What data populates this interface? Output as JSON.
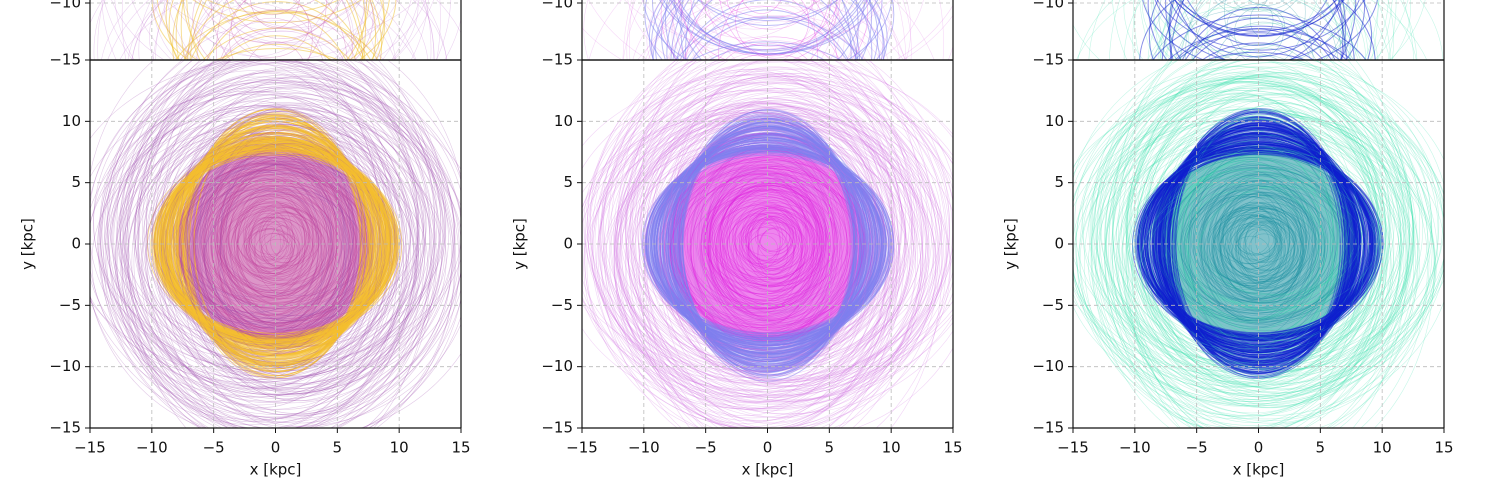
{
  "chart_data": [
    {
      "type": "orbits",
      "ylim": [
        -15,
        -10
      ],
      "xlim": [
        -15,
        15
      ],
      "yticks": [
        {
          "value": -15,
          "label": "−15"
        },
        {
          "value": -10,
          "label": "−10"
        }
      ],
      "xticks": [
        -10,
        -5,
        0,
        5,
        10
      ],
      "grid": true,
      "colors": [
        "#c070d0",
        "#c040a0",
        "#f0c030"
      ]
    },
    {
      "type": "orbits",
      "ylim": [
        -15,
        -10
      ],
      "xlim": [
        -15,
        15
      ],
      "yticks": [
        {
          "value": -15,
          "label": "−15"
        },
        {
          "value": -10,
          "label": "−10"
        }
      ],
      "xticks": [
        -10,
        -5,
        0,
        5,
        10
      ],
      "grid": true,
      "colors": [
        "#e080e8",
        "#e020e0",
        "#8080f0"
      ]
    },
    {
      "type": "orbits",
      "ylim": [
        -15,
        -10
      ],
      "xlim": [
        -15,
        15
      ],
      "yticks": [
        {
          "value": -15,
          "label": "−15"
        },
        {
          "value": -10,
          "label": "−10"
        }
      ],
      "xticks": [
        -10,
        -5,
        0,
        5,
        10
      ],
      "grid": true,
      "colors": [
        "#40e0b0",
        "#1a8fa0",
        "#1020d0"
      ]
    },
    {
      "type": "orbits",
      "xlabel": "x [kpc]",
      "ylabel": "y [kpc]",
      "xlim": [
        -15,
        15
      ],
      "ylim": [
        -15,
        15
      ],
      "xticks": [
        {
          "value": -15,
          "label": "−15"
        },
        {
          "value": -10,
          "label": "−10"
        },
        {
          "value": -5,
          "label": "−5"
        },
        0,
        5,
        10,
        15
      ],
      "yticks": [
        {
          "value": -15,
          "label": "−15"
        },
        {
          "value": -10,
          "label": "−10"
        },
        {
          "value": -5,
          "label": "−5"
        },
        0,
        5,
        10
      ],
      "grid": true,
      "colors": [
        "#a050b0",
        "#c0409a",
        "#f5c030"
      ]
    },
    {
      "type": "orbits",
      "xlabel": "x [kpc]",
      "ylabel": "y [kpc]",
      "xlim": [
        -15,
        15
      ],
      "ylim": [
        -15,
        15
      ],
      "xticks": [
        {
          "value": -15,
          "label": "−15"
        },
        {
          "value": -10,
          "label": "−10"
        },
        {
          "value": -5,
          "label": "−5"
        },
        0,
        5,
        10,
        15
      ],
      "yticks": [
        {
          "value": -15,
          "label": "−15"
        },
        {
          "value": -10,
          "label": "−10"
        },
        {
          "value": -5,
          "label": "−5"
        },
        0,
        5,
        10
      ],
      "grid": true,
      "colors": [
        "#d070e0",
        "#e020e0",
        "#8080f0"
      ]
    },
    {
      "type": "orbits",
      "xlabel": "x [kpc]",
      "ylabel": "y [kpc]",
      "xlim": [
        -15,
        15
      ],
      "ylim": [
        -15,
        15
      ],
      "xticks": [
        {
          "value": -15,
          "label": "−15"
        },
        {
          "value": -10,
          "label": "−10"
        },
        {
          "value": -5,
          "label": "−5"
        },
        0,
        5,
        10,
        15
      ],
      "yticks": [
        {
          "value": -15,
          "label": "−15"
        },
        {
          "value": -10,
          "label": "−10"
        },
        {
          "value": -5,
          "label": "−5"
        },
        0,
        5,
        10
      ],
      "grid": true,
      "colors": [
        "#40e0b0",
        "#1a8fa0",
        "#1020d0"
      ]
    }
  ]
}
